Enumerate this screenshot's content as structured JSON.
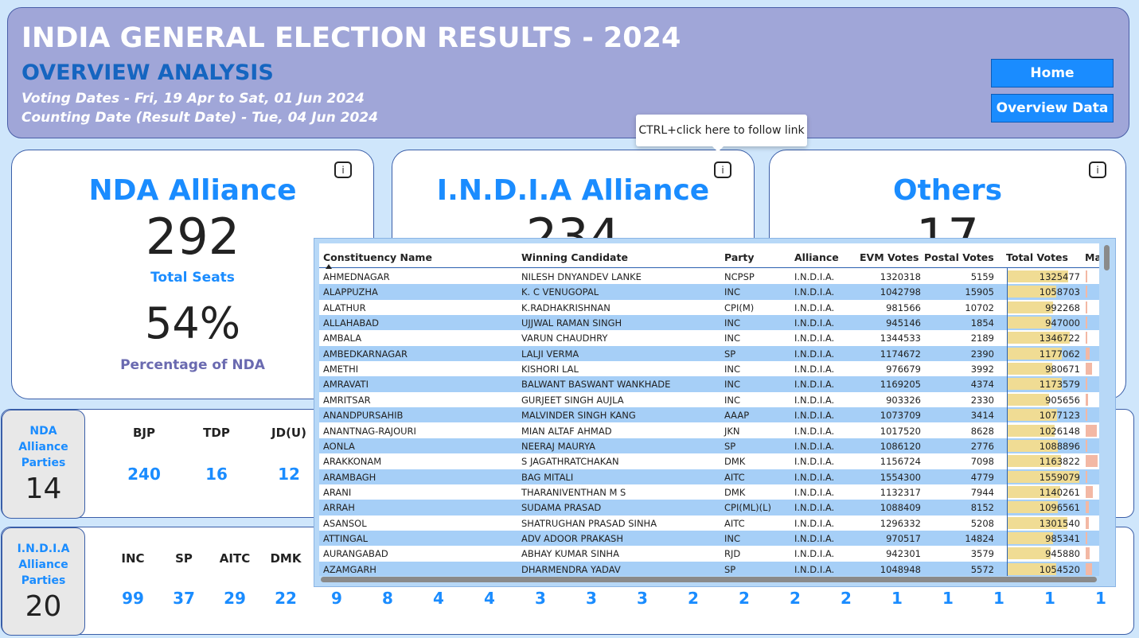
{
  "header": {
    "title": "INDIA GENERAL ELECTION RESULTS - 2024",
    "subtitle": "OVERVIEW ANALYSIS",
    "voting_dates": "Voting Dates - Fri, 19 Apr to Sat, 01 Jun 2024",
    "counting_date": "Counting Date (Result Date) - Tue, 04 Jun 2024",
    "home_button": "Home",
    "overview_button": "Overview Data"
  },
  "tooltip": "CTRL+click here to follow link",
  "info_icon_glyph": "i",
  "cards": {
    "nda": {
      "title": "NDA Alliance",
      "seats": "292",
      "seats_label": "Total Seats",
      "percent": "54%",
      "percent_label": "Percentage of NDA"
    },
    "india": {
      "title": "I.N.D.I.A Alliance",
      "seats": "234"
    },
    "others": {
      "title": "Others",
      "seats": "17"
    }
  },
  "nda_panel": {
    "label": [
      "NDA",
      "Alliance",
      "Parties"
    ],
    "count": "14",
    "parties": [
      {
        "name": "BJP",
        "seats": "240"
      },
      {
        "name": "TDP",
        "seats": "16"
      },
      {
        "name": "JD(U)",
        "seats": "12"
      }
    ]
  },
  "india_panel": {
    "label": [
      "I.N.D.I.A",
      "Alliance",
      "Parties"
    ],
    "count": "20",
    "parties": [
      {
        "name": "INC",
        "seats": "99"
      },
      {
        "name": "SP",
        "seats": "37"
      },
      {
        "name": "AITC",
        "seats": "29"
      },
      {
        "name": "DMK",
        "seats": "22"
      }
    ],
    "more_seats": [
      "9",
      "8",
      "4",
      "4",
      "3",
      "3",
      "3",
      "2",
      "2",
      "2",
      "2",
      "1",
      "1",
      "1",
      "1",
      "1"
    ]
  },
  "table": {
    "columns": [
      "Constituency Name",
      "Winning Candidate",
      "Party",
      "Alliance",
      "EVM Votes",
      "Postal Votes",
      "Total Votes",
      "Mar"
    ],
    "max_total_votes": 1563000,
    "rows": [
      [
        "AHMEDNAGAR",
        "NILESH DNYANDEV LANKE",
        "NCPSP",
        "I.N.D.I.A.",
        "1320318",
        "5159",
        "1325477",
        0.02
      ],
      [
        "ALAPPUZHA",
        "K. C VENUGOPAL",
        "INC",
        "I.N.D.I.A.",
        "1042798",
        "15905",
        "1058703",
        0.1
      ],
      [
        "ALATHUR",
        "K.RADHAKRISHNAN",
        "CPI(M)",
        "I.N.D.I.A.",
        "981566",
        "10702",
        "992268",
        0.06
      ],
      [
        "ALLAHABAD",
        "UJJWAL RAMAN SINGH",
        "INC",
        "I.N.D.I.A.",
        "945146",
        "1854",
        "947000",
        0.08
      ],
      [
        "AMBALA",
        "VARUN CHAUDHRY",
        "INC",
        "I.N.D.I.A.",
        "1344533",
        "2189",
        "1346722",
        0.07
      ],
      [
        "AMBEDKARNAGAR",
        "LALJI VERMA",
        "SP",
        "I.N.D.I.A.",
        "1174672",
        "2390",
        "1177062",
        0.3
      ],
      [
        "AMETHI",
        "KISHORI LAL",
        "INC",
        "I.N.D.I.A.",
        "976679",
        "3992",
        "980671",
        0.45
      ],
      [
        "AMRAVATI",
        "BALWANT BASWANT WANKHADE",
        "INC",
        "I.N.D.I.A.",
        "1169205",
        "4374",
        "1173579",
        0.03
      ],
      [
        "AMRITSAR",
        "GURJEET SINGH AUJLA",
        "INC",
        "I.N.D.I.A.",
        "903326",
        "2330",
        "905656",
        0.15
      ],
      [
        "ANANDPURSAHIB",
        "MALVINDER SINGH KANG",
        "AAAP",
        "I.N.D.I.A.",
        "1073709",
        "3414",
        "1077123",
        0.03
      ],
      [
        "ANANTNAG-RAJOURI",
        "MIAN ALTAF AHMAD",
        "JKN",
        "I.N.D.I.A.",
        "1017520",
        "8628",
        "1026148",
        0.85
      ],
      [
        "AONLA",
        "NEERAJ MAURYA",
        "SP",
        "I.N.D.I.A.",
        "1086120",
        "2776",
        "1088896",
        0.05
      ],
      [
        "ARAKKONAM",
        "S JAGATHRATCHAKAN",
        "DMK",
        "I.N.D.I.A.",
        "1156724",
        "7098",
        "1163822",
        0.9
      ],
      [
        "ARAMBAGH",
        "BAG MITALI",
        "AITC",
        "I.N.D.I.A.",
        "1554300",
        "4779",
        "1559079",
        0.02
      ],
      [
        "ARANI",
        "THARANIVENTHAN M S",
        "DMK",
        "I.N.D.I.A.",
        "1132317",
        "7944",
        "1140261",
        0.55
      ],
      [
        "ARRAH",
        "SUDAMA PRASAD",
        "CPI(ML)(L)",
        "I.N.D.I.A.",
        "1088409",
        "8152",
        "1096561",
        0.25
      ],
      [
        "ASANSOL",
        "SHATRUGHAN PRASAD SINHA",
        "AITC",
        "I.N.D.I.A.",
        "1296332",
        "5208",
        "1301540",
        0.25
      ],
      [
        "ATTINGAL",
        "ADV ADOOR PRAKASH",
        "INC",
        "I.N.D.I.A.",
        "970517",
        "14824",
        "985341",
        0.02
      ],
      [
        "AURANGABAD",
        "ABHAY KUMAR SINHA",
        "RJD",
        "I.N.D.I.A.",
        "942301",
        "3579",
        "945880",
        0.3
      ],
      [
        "AZAMGARH",
        "DHARMENDRA YADAV",
        "SP",
        "I.N.D.I.A.",
        "1048948",
        "5572",
        "1054520",
        0.45
      ]
    ]
  }
}
